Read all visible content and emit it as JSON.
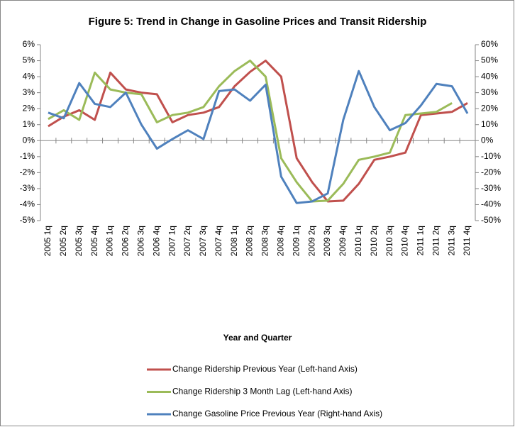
{
  "chart_data": {
    "type": "line",
    "title": "Figure 5: Trend in Change in Gasoline Prices and Transit Ridership",
    "x_label": "Year and Quarter",
    "categories": [
      "2005 1q",
      "2005 2q",
      "2005 3q",
      "2005 4q",
      "2006 1q",
      "2006 2q",
      "2006 3q",
      "2006 4q",
      "2007 1q",
      "2007 2q",
      "2007 3q",
      "2007 4q",
      "2008 1q",
      "2008 2q",
      "2008 3q",
      "2008 4q",
      "2009 1q",
      "2009 2q",
      "2009 3q",
      "2009 4q",
      "2010 1q",
      "2010 2q",
      "2010 3q",
      "2010 4q",
      "2011 1q",
      "2011 2q",
      "2011 3q",
      "2011 4q"
    ],
    "series": [
      {
        "name": "Change Ridership Previous Year (Left-hand Axis)",
        "color": "#c0504d",
        "axis": "y",
        "values": [
          0.9,
          1.5,
          1.9,
          1.3,
          4.25,
          3.2,
          3.0,
          2.9,
          1.15,
          1.6,
          1.75,
          2.1,
          3.4,
          4.3,
          5.0,
          4.0,
          -1.1,
          -2.6,
          -3.8,
          -3.75,
          -2.7,
          -1.2,
          -1.0,
          -0.75,
          1.6,
          1.7,
          1.8,
          2.35
        ]
      },
      {
        "name": "Change Ridership 3 Month Lag (Left-hand Axis)",
        "color": "#9bbb59",
        "axis": "y",
        "values": [
          1.35,
          1.9,
          1.3,
          4.25,
          3.2,
          3.0,
          2.9,
          1.15,
          1.6,
          1.75,
          2.1,
          3.4,
          4.35,
          5.0,
          4.0,
          -1.1,
          -2.6,
          -3.8,
          -3.75,
          -2.7,
          -1.2,
          -1.0,
          -0.75,
          1.6,
          1.7,
          1.8,
          2.35,
          null
        ]
      },
      {
        "name": "Change Gasoline Price Previous Year (Right-hand Axis)",
        "color": "#4f81bd",
        "axis": "y2",
        "values": [
          17.5,
          14,
          36,
          23,
          21,
          30,
          10,
          -5,
          1,
          6.5,
          1,
          31,
          32,
          25,
          35,
          -22.5,
          -39,
          -38,
          -33,
          13,
          43.5,
          21,
          6.5,
          11,
          22,
          35.5,
          34,
          17
        ]
      }
    ],
    "ylim": [
      -5,
      6
    ],
    "yticks": [
      {
        "value": -5,
        "label": "-5%"
      },
      {
        "value": -4,
        "label": "-4%"
      },
      {
        "value": -3,
        "label": "-3%"
      },
      {
        "value": -2,
        "label": "-2%"
      },
      {
        "value": -1,
        "label": "-1%"
      },
      {
        "value": 0,
        "label": "0%"
      },
      {
        "value": 1,
        "label": "1%"
      },
      {
        "value": 2,
        "label": "2%"
      },
      {
        "value": 3,
        "label": "3%"
      },
      {
        "value": 4,
        "label": "4%"
      },
      {
        "value": 5,
        "label": "5%"
      },
      {
        "value": 6,
        "label": "6%"
      }
    ],
    "y2lim": [
      -50,
      60
    ],
    "y2ticks": [
      {
        "value": -50,
        "label": "-50%"
      },
      {
        "value": -40,
        "label": "-40%"
      },
      {
        "value": -30,
        "label": "-30%"
      },
      {
        "value": -20,
        "label": "-20%"
      },
      {
        "value": -10,
        "label": "-10%"
      },
      {
        "value": 0,
        "label": "0%"
      },
      {
        "value": 10,
        "label": "10%"
      },
      {
        "value": 20,
        "label": "20%"
      },
      {
        "value": 30,
        "label": "30%"
      },
      {
        "value": 40,
        "label": "40%"
      },
      {
        "value": 50,
        "label": "50%"
      },
      {
        "value": 60,
        "label": "60%"
      }
    ],
    "legend": "bottom"
  }
}
